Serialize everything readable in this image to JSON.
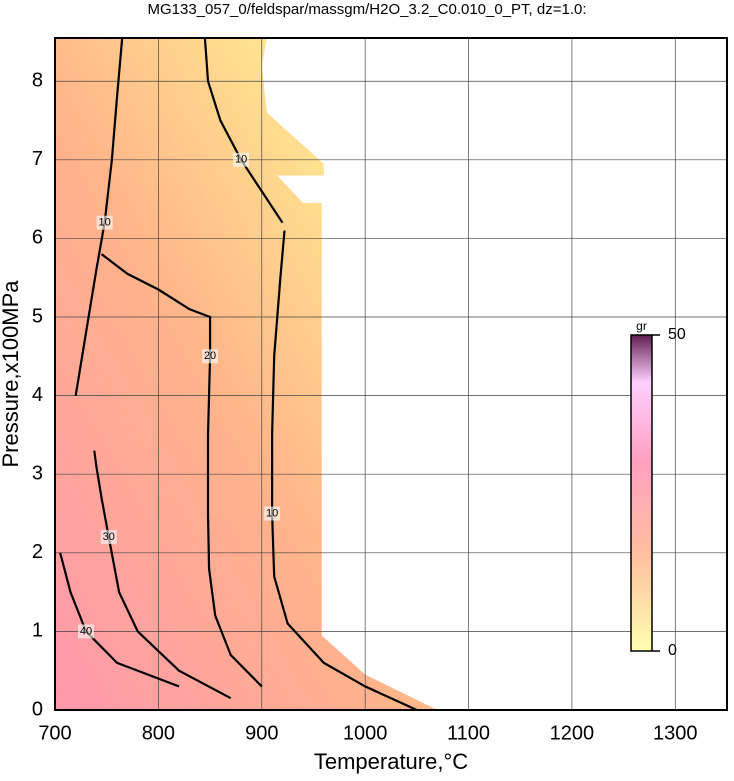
{
  "chart_data": {
    "type": "contour",
    "title": "MG133_057_0/feldspar/massgm/H2O_3.2_C0.010_0_PT, dz=1.0:",
    "x_label": "Temperature,°C",
    "y_label": "Pressure,x100MPa",
    "xlim": [
      700,
      1350
    ],
    "xticks": [
      700,
      800,
      900,
      1000,
      1100,
      1200,
      1300
    ],
    "ylim": [
      0,
      8.55
    ],
    "yticks": [
      0,
      1,
      2,
      3,
      4,
      5,
      6,
      7,
      8
    ],
    "grid": true,
    "field": {
      "x": [
        700,
        1070,
        1000,
        958,
        958,
        940,
        915,
        960,
        960,
        905,
        900,
        905,
        700
      ],
      "y": [
        0,
        0,
        0.45,
        0.95,
        6.45,
        6.45,
        6.8,
        6.8,
        6.95,
        7.6,
        8.2,
        8.55,
        8.55
      ]
    },
    "contours": [
      {
        "level": 10,
        "x": [
          1050,
          1000,
          960,
          925,
          912,
          910,
          910,
          912,
          918,
          922
        ],
        "y": [
          0,
          0.3,
          0.6,
          1.1,
          1.7,
          2.5,
          3.5,
          4.5,
          5.5,
          6.1
        ]
      },
      {
        "level": 10,
        "x": [
          720,
          730,
          740,
          748,
          755,
          760,
          765
        ],
        "y": [
          4.0,
          4.8,
          5.6,
          6.2,
          7.0,
          7.8,
          8.55
        ]
      },
      {
        "level": 10,
        "x": [
          845,
          848,
          860,
          880,
          900,
          920
        ],
        "y": [
          8.55,
          8.0,
          7.5,
          7.0,
          6.6,
          6.2
        ]
      },
      {
        "level": 20,
        "x": [
          900,
          870,
          855,
          849,
          848,
          848,
          850,
          850,
          830,
          800,
          770,
          745
        ],
        "y": [
          0.3,
          0.7,
          1.2,
          1.8,
          2.5,
          3.5,
          4.5,
          5.0,
          5.1,
          5.35,
          5.55,
          5.8
        ]
      },
      {
        "level": 30,
        "x": [
          870,
          820,
          780,
          762,
          752,
          745,
          740,
          738
        ],
        "y": [
          0.15,
          0.5,
          1.0,
          1.5,
          2.2,
          2.7,
          3.1,
          3.3
        ]
      },
      {
        "level": 40,
        "x": [
          820,
          760,
          730,
          715,
          705
        ],
        "y": [
          0.3,
          0.6,
          1.0,
          1.5,
          2.0
        ]
      }
    ],
    "colorbar": {
      "label": "gr",
      "lim": [
        0,
        50
      ],
      "ticks": [
        0,
        50
      ]
    }
  }
}
